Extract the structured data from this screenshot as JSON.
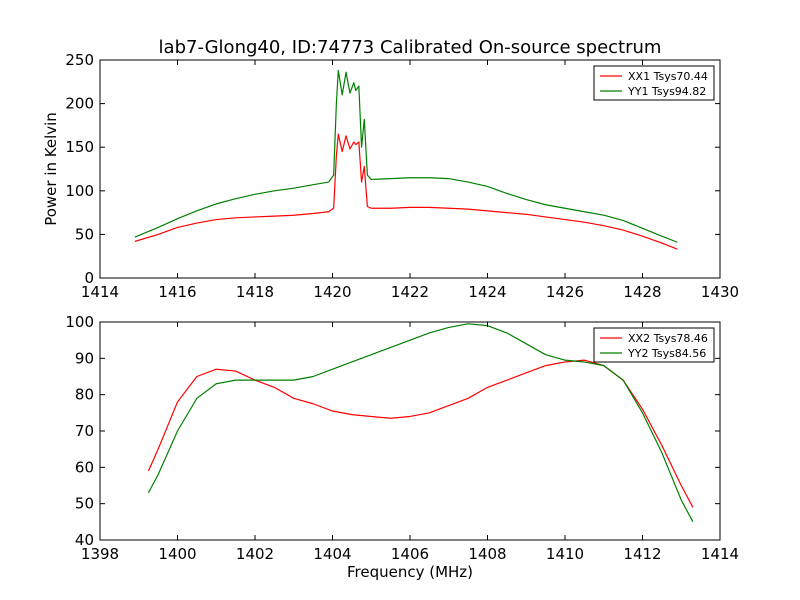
{
  "chart_data": [
    {
      "type": "line",
      "title": "lab7-Glong40, ID:74773 Calibrated On-source spectrum",
      "xlabel": "",
      "ylabel": "Power in Kelvin",
      "xlim": [
        1414,
        1430
      ],
      "ylim": [
        0,
        250
      ],
      "xticks": [
        1414,
        1416,
        1418,
        1420,
        1422,
        1424,
        1426,
        1428,
        1430
      ],
      "yticks": [
        0,
        50,
        100,
        150,
        200,
        250
      ],
      "grid": false,
      "legend_position": "top-right",
      "series": [
        {
          "name": "XX1 Tsys70.44",
          "color": "#ff0000",
          "points": [
            [
              1414.9,
              42
            ],
            [
              1415.5,
              50
            ],
            [
              1416.0,
              58
            ],
            [
              1416.5,
              63
            ],
            [
              1417.0,
              67
            ],
            [
              1417.5,
              69
            ],
            [
              1418.0,
              70
            ],
            [
              1418.5,
              71
            ],
            [
              1419.0,
              72
            ],
            [
              1419.5,
              74
            ],
            [
              1419.9,
              76
            ],
            [
              1420.03,
              80
            ],
            [
              1420.1,
              140
            ],
            [
              1420.15,
              165
            ],
            [
              1420.25,
              145
            ],
            [
              1420.35,
              163
            ],
            [
              1420.45,
              148
            ],
            [
              1420.55,
              156
            ],
            [
              1420.6,
              153
            ],
            [
              1420.68,
              156
            ],
            [
              1420.75,
              110
            ],
            [
              1420.82,
              128
            ],
            [
              1420.9,
              82
            ],
            [
              1421.0,
              80
            ],
            [
              1421.5,
              80
            ],
            [
              1422.0,
              81
            ],
            [
              1422.5,
              81
            ],
            [
              1423.0,
              80
            ],
            [
              1423.5,
              79
            ],
            [
              1424.0,
              77
            ],
            [
              1424.5,
              75
            ],
            [
              1425.0,
              73
            ],
            [
              1425.5,
              70
            ],
            [
              1426.0,
              67
            ],
            [
              1426.5,
              64
            ],
            [
              1427.0,
              60
            ],
            [
              1427.5,
              55
            ],
            [
              1428.0,
              48
            ],
            [
              1428.5,
              40
            ],
            [
              1428.9,
              33
            ]
          ]
        },
        {
          "name": "YY1 Tsys94.82",
          "color": "#008000",
          "points": [
            [
              1414.9,
              47
            ],
            [
              1415.5,
              58
            ],
            [
              1416.0,
              68
            ],
            [
              1416.5,
              77
            ],
            [
              1417.0,
              85
            ],
            [
              1417.5,
              91
            ],
            [
              1418.0,
              96
            ],
            [
              1418.5,
              100
            ],
            [
              1419.0,
              103
            ],
            [
              1419.5,
              107
            ],
            [
              1419.9,
              110
            ],
            [
              1420.03,
              118
            ],
            [
              1420.1,
              200
            ],
            [
              1420.15,
              238
            ],
            [
              1420.25,
              210
            ],
            [
              1420.35,
              236
            ],
            [
              1420.45,
              212
            ],
            [
              1420.55,
              224
            ],
            [
              1420.6,
              215
            ],
            [
              1420.68,
              220
            ],
            [
              1420.75,
              150
            ],
            [
              1420.82,
              182
            ],
            [
              1420.9,
              118
            ],
            [
              1421.0,
              113
            ],
            [
              1421.5,
              114
            ],
            [
              1422.0,
              115
            ],
            [
              1422.5,
              115
            ],
            [
              1423.0,
              114
            ],
            [
              1423.5,
              110
            ],
            [
              1424.0,
              105
            ],
            [
              1424.5,
              97
            ],
            [
              1425.0,
              90
            ],
            [
              1425.5,
              84
            ],
            [
              1426.0,
              80
            ],
            [
              1426.5,
              76
            ],
            [
              1427.0,
              72
            ],
            [
              1427.5,
              66
            ],
            [
              1428.0,
              57
            ],
            [
              1428.5,
              48
            ],
            [
              1428.9,
              41
            ]
          ]
        }
      ]
    },
    {
      "type": "line",
      "title": "",
      "xlabel": "Frequency (MHz)",
      "ylabel": "",
      "xlim": [
        1398,
        1414
      ],
      "ylim": [
        40,
        100
      ],
      "xticks": [
        1398,
        1400,
        1402,
        1404,
        1406,
        1408,
        1410,
        1412,
        1414
      ],
      "yticks": [
        40,
        50,
        60,
        70,
        80,
        90,
        100
      ],
      "grid": false,
      "legend_position": "top-right",
      "series": [
        {
          "name": "XX2 Tsys78.46",
          "color": "#ff0000",
          "points": [
            [
              1399.25,
              59
            ],
            [
              1399.5,
              65
            ],
            [
              1400.0,
              78
            ],
            [
              1400.5,
              85
            ],
            [
              1401.0,
              87
            ],
            [
              1401.5,
              86.5
            ],
            [
              1402.0,
              84
            ],
            [
              1402.5,
              82
            ],
            [
              1403.0,
              79
            ],
            [
              1403.5,
              77.5
            ],
            [
              1404.0,
              75.5
            ],
            [
              1404.5,
              74.5
            ],
            [
              1405.0,
              74
            ],
            [
              1405.5,
              73.5
            ],
            [
              1406.0,
              74
            ],
            [
              1406.5,
              75
            ],
            [
              1407.0,
              77
            ],
            [
              1407.5,
              79
            ],
            [
              1408.0,
              82
            ],
            [
              1408.5,
              84
            ],
            [
              1409.0,
              86
            ],
            [
              1409.5,
              88
            ],
            [
              1410.0,
              89
            ],
            [
              1410.5,
              89.5
            ],
            [
              1411.0,
              88
            ],
            [
              1411.5,
              84
            ],
            [
              1412.0,
              76
            ],
            [
              1412.5,
              66
            ],
            [
              1413.0,
              55
            ],
            [
              1413.3,
              49
            ]
          ]
        },
        {
          "name": "YY2 Tsys84.56",
          "color": "#008000",
          "points": [
            [
              1399.25,
              53
            ],
            [
              1399.5,
              58
            ],
            [
              1400.0,
              70
            ],
            [
              1400.5,
              79
            ],
            [
              1401.0,
              83
            ],
            [
              1401.5,
              84
            ],
            [
              1402.0,
              84
            ],
            [
              1402.5,
              84
            ],
            [
              1403.0,
              84
            ],
            [
              1403.5,
              85
            ],
            [
              1404.0,
              87
            ],
            [
              1404.5,
              89
            ],
            [
              1405.0,
              91
            ],
            [
              1405.5,
              93
            ],
            [
              1406.0,
              95
            ],
            [
              1406.5,
              97
            ],
            [
              1407.0,
              98.5
            ],
            [
              1407.5,
              99.5
            ],
            [
              1408.0,
              99
            ],
            [
              1408.5,
              97
            ],
            [
              1409.0,
              94
            ],
            [
              1409.5,
              91
            ],
            [
              1410.0,
              89.5
            ],
            [
              1410.5,
              89
            ],
            [
              1411.0,
              88
            ],
            [
              1411.5,
              84
            ],
            [
              1412.0,
              75
            ],
            [
              1412.5,
              64
            ],
            [
              1413.0,
              51
            ],
            [
              1413.3,
              45
            ]
          ]
        }
      ]
    }
  ]
}
